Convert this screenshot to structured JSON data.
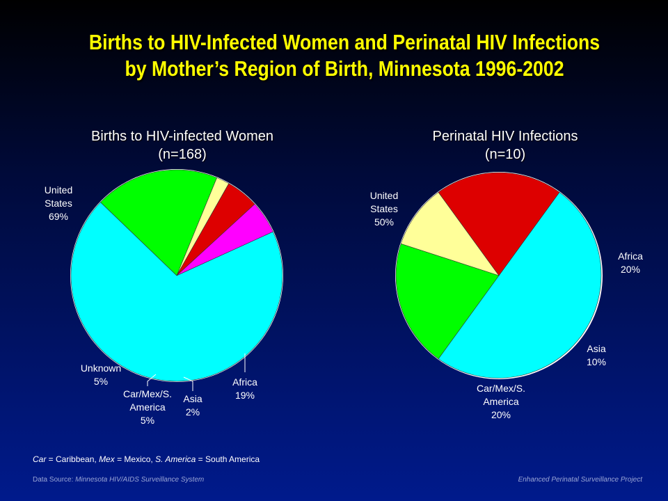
{
  "title": {
    "line1": "Births to HIV-Infected Women and Perinatal HIV Infections",
    "line2": "by Mother’s Region of Birth, Minnesota 1996-2002"
  },
  "chart_data": [
    {
      "type": "pie",
      "title": "Births to HIV-infected Women",
      "subtitle": "(n=168)",
      "slices": [
        {
          "label": "United States",
          "value": 69,
          "color": "#00ffff",
          "label_lines": [
            "United",
            "States",
            "69%"
          ]
        },
        {
          "label": "Africa",
          "value": 19,
          "color": "#00ff00",
          "label_lines": [
            "Africa",
            "19%"
          ]
        },
        {
          "label": "Asia",
          "value": 2,
          "color": "#ffff99",
          "label_lines": [
            "Asia",
            "2%"
          ]
        },
        {
          "label": "Car/Mex/S. America",
          "value": 5,
          "color": "#dd0000",
          "label_lines": [
            "Car/Mex/S.",
            "America",
            "5%"
          ]
        },
        {
          "label": "Unknown",
          "value": 5,
          "color": "#ff00ff",
          "label_lines": [
            "Unknown",
            "5%"
          ]
        }
      ]
    },
    {
      "type": "pie",
      "title": "Perinatal HIV Infections",
      "subtitle": "(n=10)",
      "slices": [
        {
          "label": "United States",
          "value": 50,
          "color": "#00ffff",
          "label_lines": [
            "United",
            "States",
            "50%"
          ]
        },
        {
          "label": "Africa",
          "value": 20,
          "color": "#00ff00",
          "label_lines": [
            "Africa",
            "20%"
          ]
        },
        {
          "label": "Asia",
          "value": 10,
          "color": "#ffff99",
          "label_lines": [
            "Asia",
            "10%"
          ]
        },
        {
          "label": "Car/Mex/S. America",
          "value": 20,
          "color": "#dd0000",
          "label_lines": [
            "Car/Mex/S.",
            "America",
            "20%"
          ]
        }
      ]
    }
  ],
  "footnote": {
    "car_abbr": "Car",
    "car_text": " = Caribbean, ",
    "mex_abbr": "Mex",
    "mex_text": " = Mexico, ",
    "sam_abbr": "S. America",
    "sam_text": " = South America"
  },
  "source": {
    "left_prefix": "Data Source: ",
    "left_italic": "Minnesota HIV/AIDS Surveillance System",
    "right": "Enhanced Perinatal Surveillance Project"
  }
}
